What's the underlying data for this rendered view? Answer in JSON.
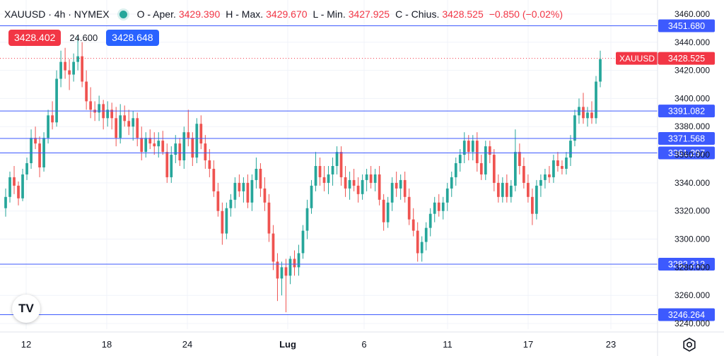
{
  "header": {
    "symbol": "XAUUSD · 4h · NYMEX",
    "open_label": "O - Aper.",
    "open_value": "3429.390",
    "high_label": "H - Max.",
    "high_value": "3429.670",
    "low_label": "L - Min.",
    "low_value": "3427.925",
    "close_label": "C - Chius.",
    "close_value": "3428.525",
    "change": "−0.850 (−0.02%)"
  },
  "trade": {
    "sell": "3428.402",
    "spread": "24.600",
    "buy": "3428.648"
  },
  "logo_text": "TV",
  "colors": {
    "up": "#26a69a",
    "down": "#ef5350",
    "line": "#3d5afe",
    "price_label": "#f23645",
    "grid": "#f0f3fa"
  },
  "chart_data": {
    "type": "candlestick",
    "symbol_label": "XAUUSD",
    "last_price": "3428.525",
    "ylim": [
      3236,
      3468
    ],
    "y_ticks": [
      "3460.000",
      "3440.000",
      "3420.000",
      "3400.000",
      "3380.000",
      "3360.000",
      "3340.000",
      "3320.000",
      "3300.000",
      "3280.000",
      "3260.000",
      "3240.000"
    ],
    "x_ticks": [
      "12",
      "18",
      "24",
      "Lug",
      "6",
      "11",
      "17",
      "23"
    ],
    "horizontal_lines": [
      "3451.680",
      "3391.082",
      "3371.568",
      "3361.297",
      "3282.212",
      "3246.264"
    ],
    "candles": [
      [
        3322,
        3336,
        3316,
        3330
      ],
      [
        3330,
        3348,
        3326,
        3344
      ],
      [
        3344,
        3352,
        3332,
        3338
      ],
      [
        3338,
        3341,
        3324,
        3329
      ],
      [
        3329,
        3350,
        3327,
        3346
      ],
      [
        3346,
        3358,
        3342,
        3354
      ],
      [
        3354,
        3378,
        3350,
        3372
      ],
      [
        3372,
        3380,
        3364,
        3368
      ],
      [
        3368,
        3373,
        3344,
        3351
      ],
      [
        3351,
        3376,
        3348,
        3372
      ],
      [
        3372,
        3392,
        3368,
        3388
      ],
      [
        3388,
        3398,
        3378,
        3383
      ],
      [
        3383,
        3420,
        3380,
        3414
      ],
      [
        3414,
        3434,
        3408,
        3426
      ],
      [
        3426,
        3436,
        3414,
        3420
      ],
      [
        3420,
        3428,
        3406,
        3417
      ],
      [
        3417,
        3432,
        3412,
        3426
      ],
      [
        3426,
        3444,
        3420,
        3430
      ],
      [
        3430,
        3440,
        3408,
        3412
      ],
      [
        3412,
        3420,
        3392,
        3398
      ],
      [
        3398,
        3408,
        3386,
        3392
      ],
      [
        3392,
        3398,
        3384,
        3390
      ],
      [
        3390,
        3402,
        3384,
        3396
      ],
      [
        3396,
        3399,
        3378,
        3386
      ],
      [
        3386,
        3398,
        3380,
        3392
      ],
      [
        3392,
        3397,
        3378,
        3386
      ],
      [
        3386,
        3394,
        3366,
        3372
      ],
      [
        3372,
        3396,
        3368,
        3388
      ],
      [
        3388,
        3395,
        3380,
        3384
      ],
      [
        3384,
        3392,
        3374,
        3380
      ],
      [
        3380,
        3391,
        3370,
        3386
      ],
      [
        3386,
        3390,
        3366,
        3372
      ],
      [
        3372,
        3380,
        3356,
        3362
      ],
      [
        3362,
        3376,
        3358,
        3372
      ],
      [
        3372,
        3378,
        3364,
        3368
      ],
      [
        3368,
        3376,
        3360,
        3366
      ],
      [
        3366,
        3376,
        3358,
        3370
      ],
      [
        3370,
        3377,
        3360,
        3362
      ],
      [
        3362,
        3368,
        3340,
        3344
      ],
      [
        3344,
        3366,
        3340,
        3360
      ],
      [
        3360,
        3374,
        3354,
        3368
      ],
      [
        3368,
        3372,
        3352,
        3356
      ],
      [
        3356,
        3380,
        3350,
        3376
      ],
      [
        3376,
        3392,
        3366,
        3372
      ],
      [
        3372,
        3376,
        3352,
        3358
      ],
      [
        3358,
        3386,
        3354,
        3382
      ],
      [
        3382,
        3388,
        3364,
        3368
      ],
      [
        3368,
        3374,
        3350,
        3356
      ],
      [
        3356,
        3364,
        3344,
        3350
      ],
      [
        3350,
        3356,
        3330,
        3334
      ],
      [
        3334,
        3340,
        3316,
        3320
      ],
      [
        3320,
        3326,
        3296,
        3304
      ],
      [
        3304,
        3326,
        3300,
        3322
      ],
      [
        3322,
        3332,
        3316,
        3328
      ],
      [
        3328,
        3344,
        3322,
        3340
      ],
      [
        3340,
        3346,
        3330,
        3334
      ],
      [
        3334,
        3344,
        3326,
        3340
      ],
      [
        3340,
        3346,
        3322,
        3326
      ],
      [
        3326,
        3346,
        3320,
        3342
      ],
      [
        3342,
        3358,
        3336,
        3350
      ],
      [
        3350,
        3354,
        3330,
        3336
      ],
      [
        3336,
        3344,
        3320,
        3326
      ],
      [
        3326,
        3332,
        3298,
        3304
      ],
      [
        3304,
        3310,
        3278,
        3284
      ],
      [
        3284,
        3290,
        3256,
        3272
      ],
      [
        3272,
        3284,
        3260,
        3280
      ],
      [
        3280,
        3286,
        3248,
        3274
      ],
      [
        3274,
        3288,
        3268,
        3286
      ],
      [
        3286,
        3292,
        3274,
        3280
      ],
      [
        3280,
        3296,
        3274,
        3290
      ],
      [
        3290,
        3310,
        3286,
        3306
      ],
      [
        3306,
        3328,
        3300,
        3322
      ],
      [
        3322,
        3342,
        3318,
        3338
      ],
      [
        3338,
        3362,
        3334,
        3352
      ],
      [
        3352,
        3358,
        3338,
        3344
      ],
      [
        3344,
        3352,
        3334,
        3340
      ],
      [
        3340,
        3352,
        3332,
        3346
      ],
      [
        3346,
        3358,
        3338,
        3352
      ],
      [
        3352,
        3366,
        3346,
        3362
      ],
      [
        3362,
        3366,
        3338,
        3344
      ],
      [
        3344,
        3352,
        3330,
        3336
      ],
      [
        3336,
        3348,
        3328,
        3342
      ],
      [
        3342,
        3350,
        3334,
        3338
      ],
      [
        3338,
        3344,
        3326,
        3332
      ],
      [
        3332,
        3346,
        3328,
        3342
      ],
      [
        3342,
        3350,
        3334,
        3346
      ],
      [
        3346,
        3352,
        3336,
        3340
      ],
      [
        3340,
        3350,
        3334,
        3346
      ],
      [
        3346,
        3352,
        3324,
        3328
      ],
      [
        3328,
        3332,
        3306,
        3312
      ],
      [
        3312,
        3330,
        3308,
        3326
      ],
      [
        3326,
        3344,
        3320,
        3340
      ],
      [
        3340,
        3348,
        3330,
        3336
      ],
      [
        3336,
        3346,
        3328,
        3342
      ],
      [
        3342,
        3348,
        3326,
        3330
      ],
      [
        3330,
        3336,
        3310,
        3314
      ],
      [
        3314,
        3322,
        3302,
        3306
      ],
      [
        3306,
        3312,
        3284,
        3290
      ],
      [
        3290,
        3302,
        3284,
        3298
      ],
      [
        3298,
        3312,
        3292,
        3308
      ],
      [
        3308,
        3322,
        3302,
        3318
      ],
      [
        3318,
        3330,
        3312,
        3326
      ],
      [
        3326,
        3332,
        3316,
        3320
      ],
      [
        3320,
        3330,
        3314,
        3326
      ],
      [
        3326,
        3340,
        3320,
        3336
      ],
      [
        3336,
        3348,
        3330,
        3344
      ],
      [
        3344,
        3358,
        3338,
        3354
      ],
      [
        3354,
        3364,
        3348,
        3360
      ],
      [
        3360,
        3376,
        3354,
        3370
      ],
      [
        3370,
        3374,
        3356,
        3362
      ],
      [
        3362,
        3374,
        3356,
        3370
      ],
      [
        3370,
        3376,
        3348,
        3354
      ],
      [
        3354,
        3360,
        3342,
        3346
      ],
      [
        3346,
        3370,
        3342,
        3366
      ],
      [
        3366,
        3370,
        3354,
        3360
      ],
      [
        3360,
        3364,
        3334,
        3340
      ],
      [
        3340,
        3346,
        3326,
        3330
      ],
      [
        3330,
        3344,
        3326,
        3340
      ],
      [
        3340,
        3346,
        3326,
        3330
      ],
      [
        3330,
        3342,
        3326,
        3338
      ],
      [
        3338,
        3378,
        3334,
        3362
      ],
      [
        3362,
        3368,
        3346,
        3352
      ],
      [
        3352,
        3358,
        3336,
        3340
      ],
      [
        3340,
        3346,
        3326,
        3330
      ],
      [
        3330,
        3336,
        3310,
        3318
      ],
      [
        3318,
        3342,
        3314,
        3338
      ],
      [
        3338,
        3346,
        3330,
        3342
      ],
      [
        3342,
        3350,
        3336,
        3346
      ],
      [
        3346,
        3352,
        3340,
        3344
      ],
      [
        3344,
        3360,
        3340,
        3356
      ],
      [
        3356,
        3362,
        3348,
        3352
      ],
      [
        3352,
        3356,
        3346,
        3350
      ],
      [
        3350,
        3362,
        3346,
        3358
      ],
      [
        3358,
        3374,
        3352,
        3370
      ],
      [
        3370,
        3392,
        3366,
        3388
      ],
      [
        3388,
        3400,
        3382,
        3394
      ],
      [
        3394,
        3404,
        3382,
        3386
      ],
      [
        3386,
        3394,
        3380,
        3390
      ],
      [
        3390,
        3398,
        3382,
        3386
      ],
      [
        3386,
        3416,
        3382,
        3412
      ],
      [
        3412,
        3434,
        3408,
        3428
      ]
    ]
  }
}
